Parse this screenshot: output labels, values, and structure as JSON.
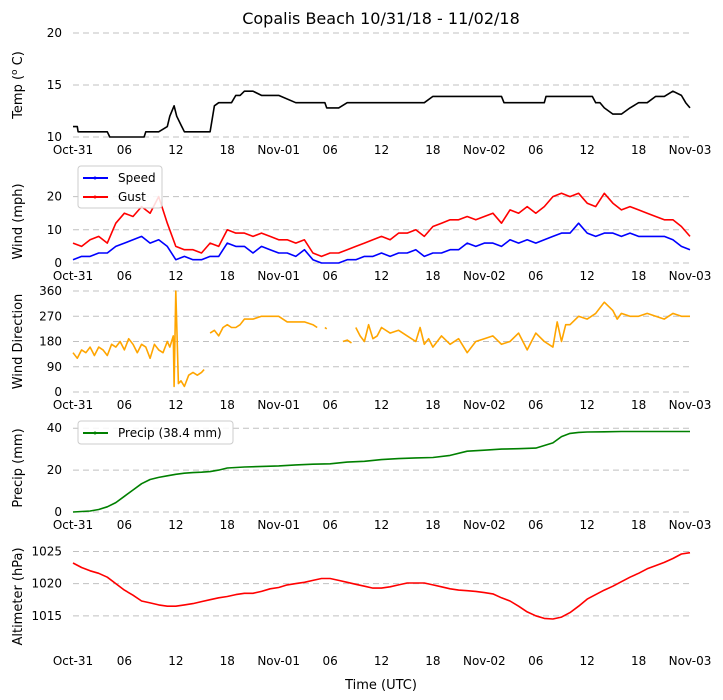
{
  "title": "Copalis Beach 10/31/18 - 11/02/18",
  "xlabel": "Time (UTC)",
  "x_ticks": [
    "Oct-31",
    "06",
    "12",
    "18",
    "Nov-01",
    "06",
    "12",
    "18",
    "Nov-02",
    "06",
    "12",
    "18",
    "Nov-03"
  ],
  "x_range_hours": [
    0,
    72
  ],
  "colors": {
    "temp": "#000000",
    "speed": "#0000ff",
    "gust": "#ff0000",
    "direction": "#ffa500",
    "precip": "#008000",
    "altimeter": "#ff0000",
    "grid": "#c0c0c0"
  },
  "chart_data": [
    {
      "type": "line",
      "ylabel": "Temp ( C)",
      "ylabel_sup": "o",
      "ylim": [
        10,
        20
      ],
      "yticks": [
        10,
        15,
        20
      ],
      "series": [
        {
          "name": "Temp",
          "color": "#000000",
          "x": [
            0,
            0.5,
            0.6,
            4,
            4.3,
            8.3,
            8.5,
            10,
            11,
            11.3,
            11.8,
            12.1,
            12.7,
            13,
            13.5,
            16,
            16.5,
            17,
            18.5,
            19,
            19.5,
            20,
            21,
            22,
            24,
            26,
            28,
            29.4,
            29.6,
            31,
            32,
            35,
            38,
            40,
            41,
            42,
            43,
            48,
            50,
            50.3,
            55,
            55.2,
            60,
            60.6,
            61,
            61.5,
            62,
            63,
            64,
            65,
            66,
            67,
            68,
            69,
            70,
            71,
            71.5,
            72
          ],
          "y": [
            11,
            11,
            10.5,
            10.5,
            10,
            10,
            10.5,
            10.5,
            11,
            12,
            13,
            12,
            11,
            10.5,
            10.5,
            10.5,
            13,
            13.3,
            13.3,
            14,
            14,
            14.4,
            14.4,
            14,
            14,
            13.3,
            13.3,
            13.3,
            12.8,
            12.8,
            13.3,
            13.3,
            13.3,
            13.3,
            13.3,
            13.9,
            13.9,
            13.9,
            13.9,
            13.3,
            13.3,
            13.9,
            13.9,
            13.9,
            13.3,
            13.3,
            12.8,
            12.2,
            12.2,
            12.8,
            13.3,
            13.3,
            13.9,
            13.9,
            14.4,
            14,
            13.3,
            12.8
          ]
        }
      ]
    },
    {
      "type": "line",
      "ylabel": "Wind (mph)",
      "ylim": [
        0,
        25
      ],
      "yticks": [
        0,
        10,
        20
      ],
      "legend": "top-left",
      "series": [
        {
          "name": "Speed",
          "color": "#0000ff",
          "x": [
            0,
            1,
            2,
            3,
            4,
            5,
            6,
            7,
            8,
            9,
            10,
            11,
            12,
            13,
            14,
            15,
            16,
            17,
            18,
            19,
            20,
            21,
            22,
            23,
            24,
            25,
            26,
            27,
            28,
            29,
            30,
            31,
            32,
            33,
            34,
            35,
            36,
            37,
            38,
            39,
            40,
            41,
            42,
            43,
            44,
            45,
            46,
            47,
            48,
            49,
            50,
            51,
            52,
            53,
            54,
            55,
            56,
            57,
            58,
            59,
            60,
            61,
            62,
            63,
            64,
            65,
            66,
            67,
            68,
            69,
            70,
            71,
            72
          ],
          "y": [
            1,
            2,
            2,
            3,
            3,
            5,
            6,
            7,
            8,
            6,
            7,
            5,
            1,
            2,
            1,
            1,
            2,
            2,
            6,
            5,
            5,
            3,
            5,
            4,
            3,
            3,
            2,
            4,
            1,
            0,
            0,
            0,
            1,
            1,
            2,
            2,
            3,
            2,
            3,
            3,
            4,
            2,
            3,
            3,
            4,
            4,
            6,
            5,
            6,
            6,
            5,
            7,
            6,
            7,
            6,
            7,
            8,
            9,
            9,
            12,
            9,
            8,
            9,
            9,
            8,
            9,
            8,
            8,
            8,
            8,
            7,
            5,
            4
          ]
        },
        {
          "name": "Gust",
          "color": "#ff0000",
          "x": [
            0,
            1,
            2,
            3,
            4,
            5,
            6,
            7,
            8,
            9,
            10,
            11,
            12,
            13,
            14,
            15,
            16,
            17,
            18,
            19,
            20,
            21,
            22,
            23,
            24,
            25,
            26,
            27,
            28,
            29,
            30,
            31,
            32,
            33,
            34,
            35,
            36,
            37,
            38,
            39,
            40,
            41,
            42,
            43,
            44,
            45,
            46,
            47,
            48,
            49,
            50,
            51,
            52,
            53,
            54,
            55,
            56,
            57,
            58,
            59,
            60,
            61,
            62,
            63,
            64,
            65,
            66,
            67,
            68,
            69,
            70,
            71,
            72
          ],
          "y": [
            6,
            5,
            7,
            8,
            6,
            12,
            15,
            14,
            17,
            15,
            20,
            12,
            5,
            4,
            4,
            3,
            6,
            5,
            10,
            9,
            9,
            8,
            9,
            8,
            7,
            7,
            6,
            7,
            3,
            2,
            3,
            3,
            4,
            5,
            6,
            7,
            8,
            7,
            9,
            9,
            10,
            8,
            11,
            12,
            13,
            13,
            14,
            13,
            14,
            15,
            12,
            16,
            15,
            17,
            15,
            17,
            20,
            21,
            20,
            21,
            18,
            17,
            21,
            18,
            16,
            17,
            16,
            15,
            14,
            13,
            13,
            11,
            8
          ]
        }
      ]
    },
    {
      "type": "line",
      "ylabel": "Wind Direction",
      "ylim": [
        0,
        360
      ],
      "yticks": [
        0,
        90,
        180,
        270,
        360
      ],
      "series": [
        {
          "name": "Direction",
          "color": "#ffa500",
          "segments": [
            {
              "x": [
                0,
                0.5,
                1,
                1.5,
                2,
                2.5,
                3,
                3.5,
                4,
                4.5,
                5,
                5.5,
                6,
                6.5,
                7,
                7.5,
                8,
                8.5,
                9,
                9.5,
                10,
                10.5,
                11,
                11.3,
                11.7,
                11.8,
                12,
                12.3,
                12.6,
                13,
                13.5,
                14,
                14.5,
                15,
                15.3
              ],
              "y": [
                140,
                120,
                150,
                140,
                160,
                130,
                160,
                150,
                130,
                170,
                160,
                180,
                150,
                190,
                170,
                140,
                170,
                160,
                120,
                170,
                150,
                140,
                180,
                160,
                200,
                20,
                360,
                30,
                40,
                20,
                60,
                70,
                60,
                70,
                80
              ]
            },
            {
              "x": [
                16,
                16.5,
                17,
                17.5,
                18,
                18.5,
                19,
                19.5,
                20,
                21,
                22,
                23,
                24,
                25,
                26,
                27,
                28,
                28.5
              ],
              "y": [
                210,
                220,
                200,
                230,
                240,
                230,
                230,
                240,
                260,
                260,
                270,
                270,
                270,
                250,
                250,
                250,
                240,
                230
              ]
            },
            {
              "x": [
                29.4,
                29.6
              ],
              "y": [
                230,
                225
              ]
            },
            {
              "x": [
                31.5,
                32,
                32.5
              ],
              "y": [
                180,
                185,
                175
              ]
            },
            {
              "x": [
                33,
                33.5,
                34,
                34.5,
                35,
                35.5,
                36,
                37,
                38,
                39,
                40,
                40.5,
                41,
                41.5,
                42,
                43,
                44,
                45,
                46,
                47,
                48,
                49,
                50,
                51,
                52,
                53,
                54,
                55,
                56,
                56.5,
                57,
                57.5,
                58,
                59,
                60,
                61,
                62,
                63,
                63.5,
                64,
                65,
                66,
                67,
                68,
                69,
                70,
                71,
                72
              ],
              "y": [
                230,
                200,
                180,
                240,
                190,
                200,
                230,
                210,
                220,
                200,
                180,
                230,
                170,
                190,
                160,
                200,
                170,
                190,
                140,
                180,
                190,
                200,
                170,
                180,
                210,
                150,
                210,
                180,
                160,
                250,
                180,
                240,
                240,
                270,
                260,
                280,
                320,
                290,
                260,
                280,
                270,
                270,
                280,
                270,
                260,
                280,
                270,
                270
              ]
            }
          ]
        }
      ]
    },
    {
      "type": "line",
      "ylabel": "Precip (mm)",
      "ylim": [
        0,
        42
      ],
      "yticks": [
        0,
        20,
        40
      ],
      "legend": "top-left",
      "series": [
        {
          "name": "Precip (38.4 mm)",
          "color": "#008000",
          "x": [
            0,
            2,
            3,
            4,
            5,
            6,
            7,
            8,
            9,
            10,
            11,
            12,
            13,
            14,
            15,
            16,
            17,
            18,
            20,
            24,
            26,
            28,
            30,
            32,
            34,
            36,
            38,
            40,
            42,
            44,
            46,
            48,
            50,
            52,
            54,
            56,
            57,
            58,
            59,
            60,
            62,
            64,
            66,
            68,
            70,
            72
          ],
          "y": [
            0,
            0.5,
            1.2,
            2.5,
            4.5,
            7.5,
            10.5,
            13.5,
            15.5,
            16.5,
            17.3,
            18,
            18.5,
            18.8,
            19,
            19.3,
            20,
            21,
            21.5,
            22,
            22.5,
            22.8,
            23,
            23.8,
            24.2,
            25,
            25.5,
            25.8,
            26,
            27,
            29,
            29.5,
            30,
            30.2,
            30.5,
            33,
            36,
            37.5,
            38,
            38.2,
            38.3,
            38.4,
            38.4,
            38.4,
            38.4,
            38.4
          ]
        }
      ]
    },
    {
      "type": "line",
      "ylabel": "Altimeter (hPa)",
      "ylim": [
        1010,
        1026
      ],
      "yticks": [
        1015,
        1020,
        1025
      ],
      "series": [
        {
          "name": "Altimeter",
          "color": "#ff0000",
          "x": [
            0,
            1,
            2,
            3,
            4,
            5,
            6,
            7,
            8,
            9,
            10,
            11,
            12,
            13,
            14,
            15,
            16,
            17,
            18,
            19,
            20,
            21,
            22,
            23,
            24,
            25,
            26,
            27,
            28,
            29,
            30,
            31,
            32,
            33,
            34,
            35,
            36,
            37,
            38,
            39,
            40,
            41,
            42,
            43,
            44,
            45,
            46,
            47,
            48,
            49,
            50,
            51,
            52,
            53,
            54,
            55,
            56,
            57,
            58,
            59,
            60,
            61,
            62,
            63,
            64,
            65,
            66,
            67,
            68,
            69,
            70,
            71,
            72
          ],
          "y": [
            1023.2,
            1022.5,
            1022,
            1021.6,
            1021,
            1020,
            1019,
            1018.2,
            1017.3,
            1017,
            1016.7,
            1016.5,
            1016.5,
            1016.7,
            1016.9,
            1017.2,
            1017.5,
            1017.8,
            1018,
            1018.3,
            1018.5,
            1018.5,
            1018.8,
            1019.2,
            1019.4,
            1019.8,
            1020,
            1020.2,
            1020.5,
            1020.8,
            1020.8,
            1020.5,
            1020.2,
            1019.9,
            1019.6,
            1019.3,
            1019.3,
            1019.5,
            1019.8,
            1020.1,
            1020.1,
            1020.1,
            1019.8,
            1019.5,
            1019.2,
            1019,
            1018.9,
            1018.8,
            1018.6,
            1018.4,
            1017.8,
            1017.3,
            1016.5,
            1015.6,
            1015,
            1014.6,
            1014.5,
            1014.8,
            1015.5,
            1016.5,
            1017.6,
            1018.3,
            1019,
            1019.6,
            1020.3,
            1021,
            1021.6,
            1022.3,
            1022.8,
            1023.3,
            1023.9,
            1024.6,
            1024.8
          ]
        }
      ]
    }
  ]
}
